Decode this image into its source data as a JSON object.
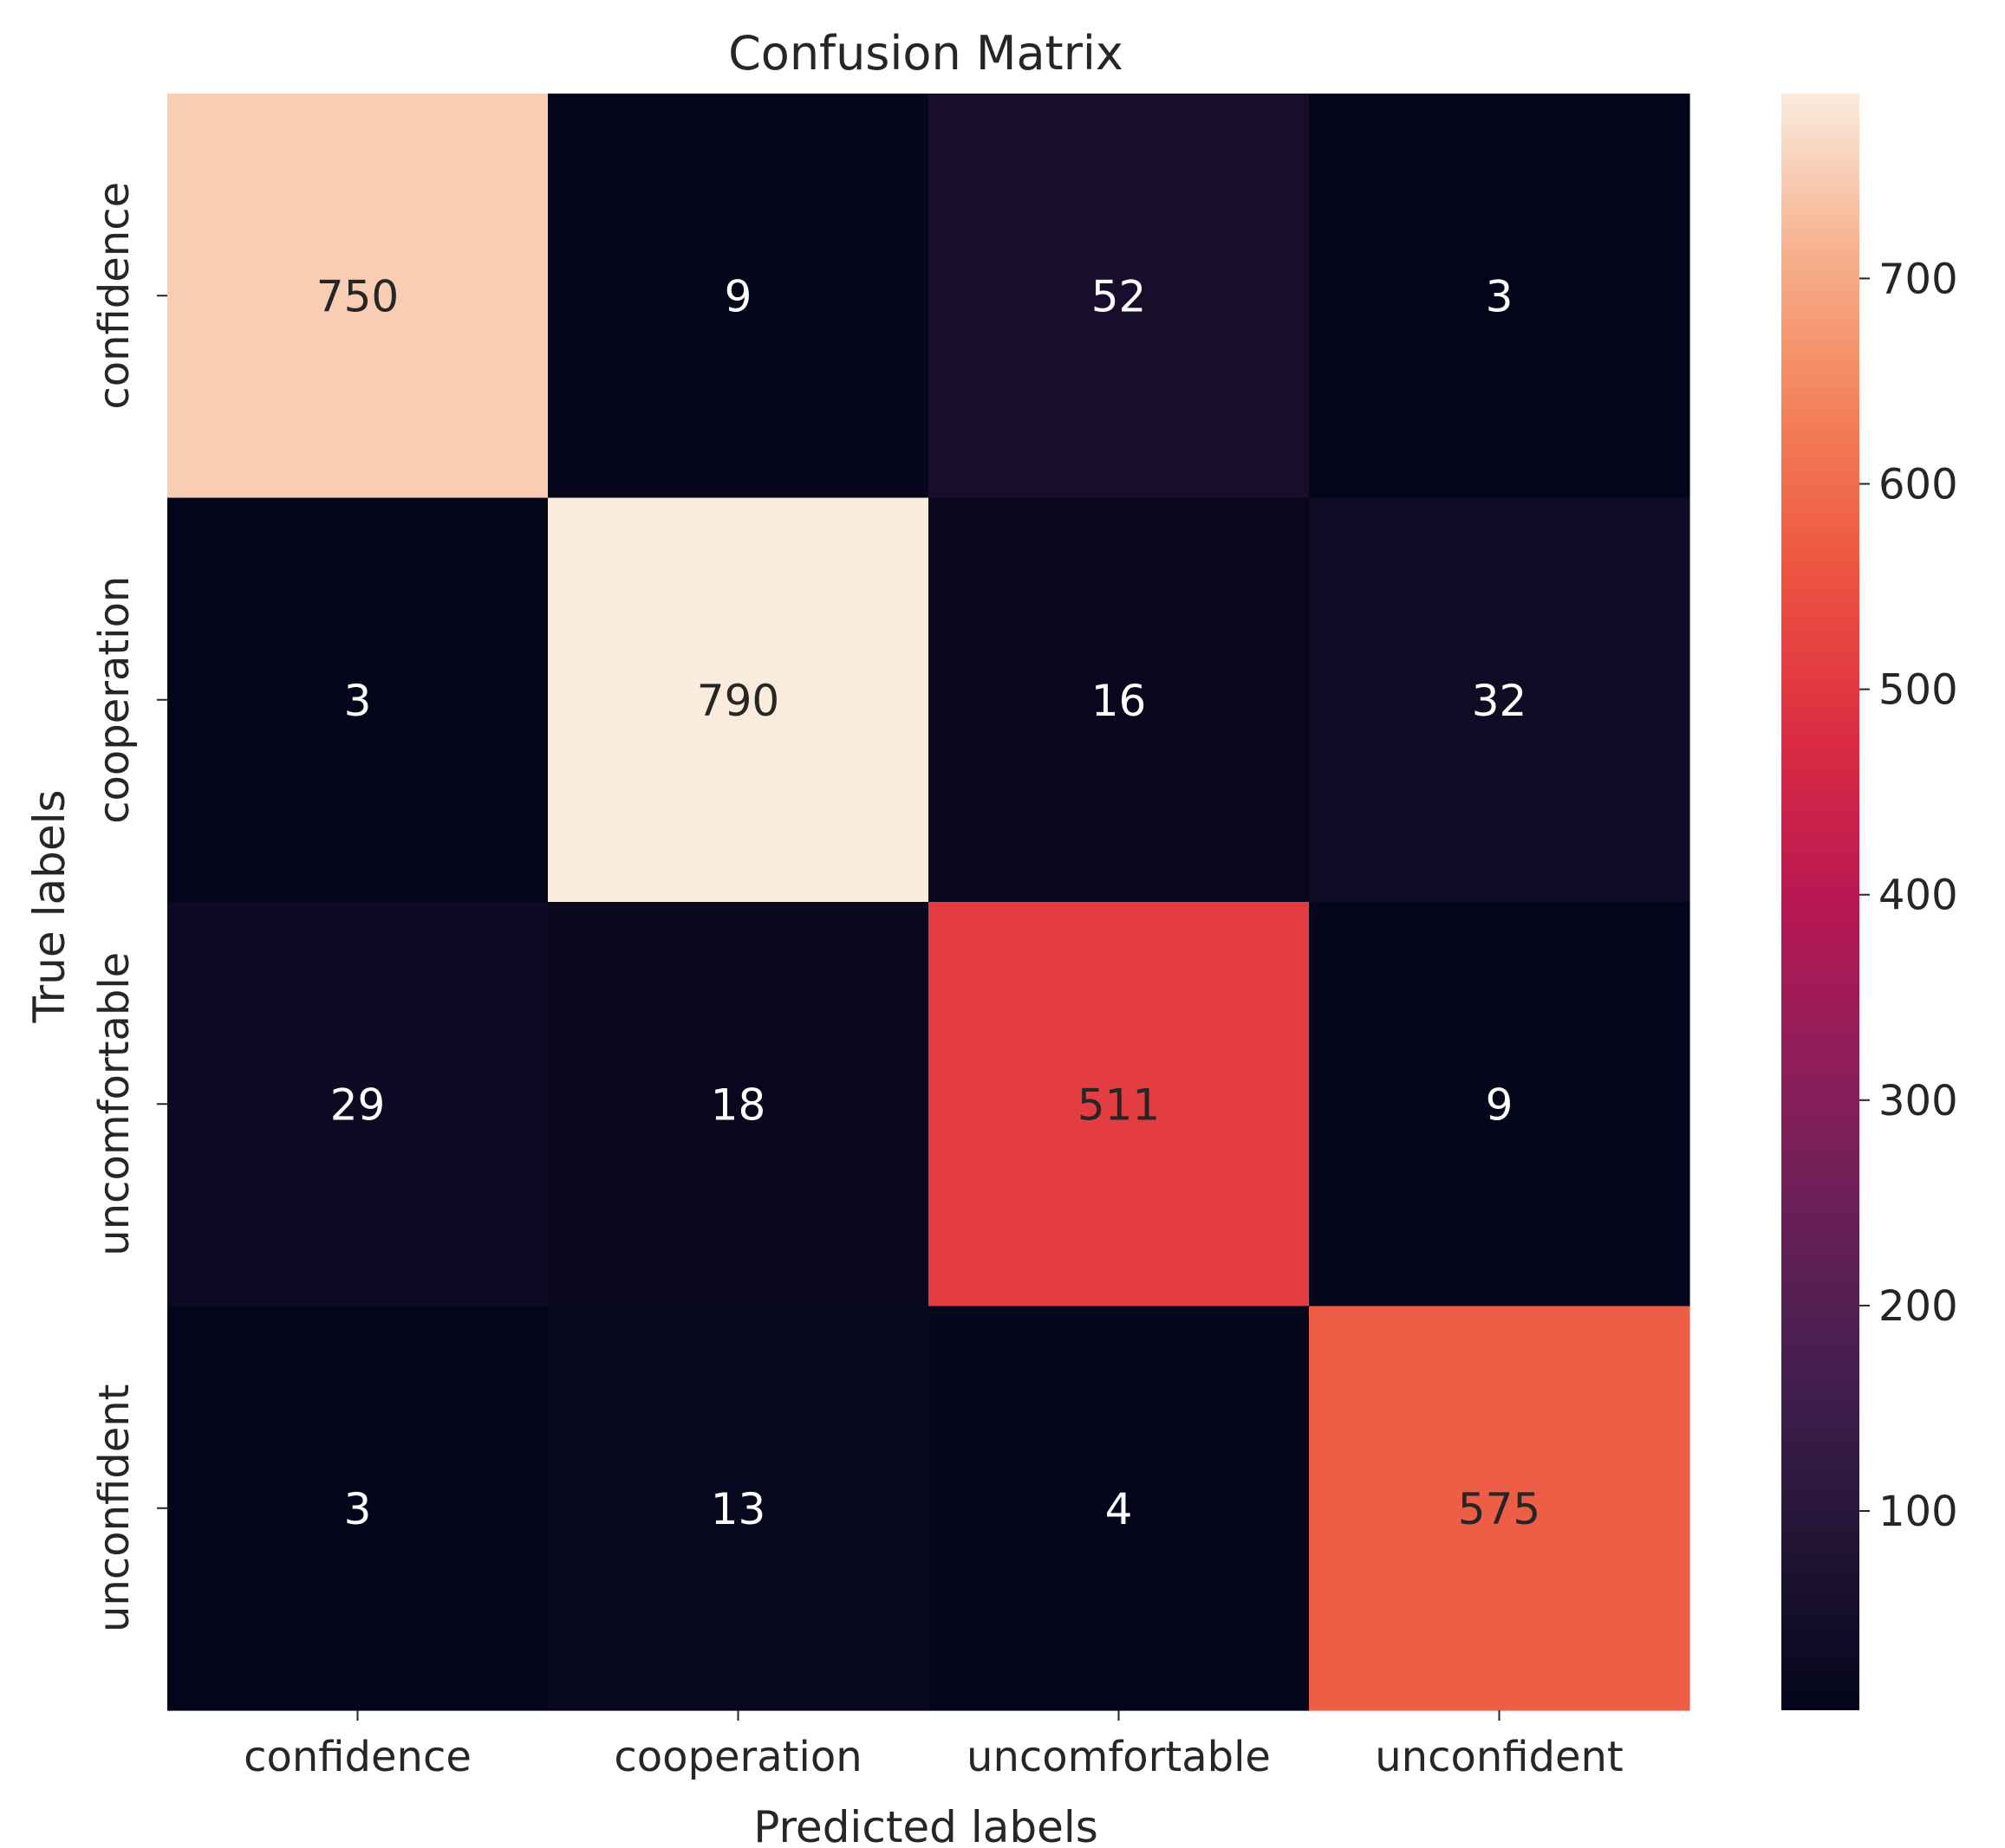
{
  "chart_data": {
    "type": "heatmap",
    "title": "Confusion Matrix",
    "xlabel": "Predicted labels",
    "ylabel": "True labels",
    "x_categories": [
      "confidence",
      "cooperation",
      "uncomfortable",
      "unconfident"
    ],
    "y_categories": [
      "confidence",
      "cooperation",
      "uncomfortable",
      "unconfident"
    ],
    "values": [
      [
        750,
        9,
        52,
        3
      ],
      [
        3,
        790,
        16,
        32
      ],
      [
        29,
        18,
        511,
        9
      ],
      [
        3,
        13,
        4,
        575
      ]
    ],
    "colorbar": {
      "colormap": "rocket",
      "vmin": 3,
      "vmax": 790,
      "ticks": [
        100,
        200,
        300,
        400,
        500,
        600,
        700
      ],
      "tick_labels": [
        "100",
        "200",
        "300",
        "400",
        "500",
        "600",
        "700"
      ]
    },
    "annotation_colors": {
      "on_dark": "#ffffff",
      "on_light": "#262626"
    }
  }
}
